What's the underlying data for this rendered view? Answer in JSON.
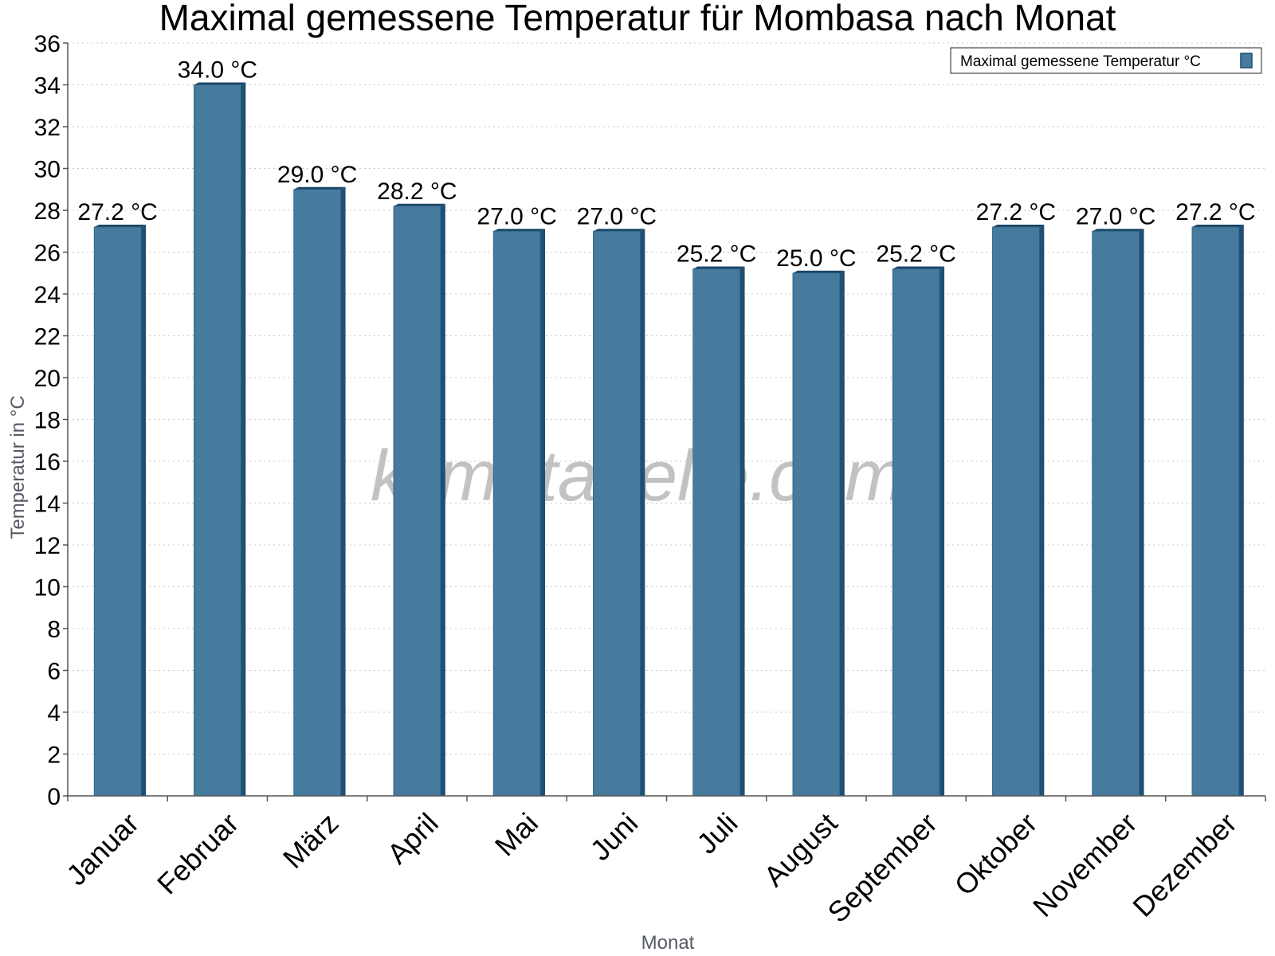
{
  "chart_data": {
    "type": "bar",
    "title": "Maximal gemessene Temperatur für Mombasa nach Monat",
    "xlabel": "Monat",
    "ylabel": "Temperatur in °C",
    "ylim": [
      0,
      36
    ],
    "ytick_step": 2,
    "grid": true,
    "legend_position": "top-right",
    "watermark": "klimatabelle.com",
    "value_suffix": " °C",
    "categories": [
      "Januar",
      "Februar",
      "März",
      "April",
      "Mai",
      "Juni",
      "Juli",
      "August",
      "September",
      "Oktober",
      "November",
      "Dezember"
    ],
    "series": [
      {
        "name": "Maximal gemessene Temperatur °C",
        "color": "#467b9e",
        "values": [
          27.2,
          34.0,
          29.0,
          28.2,
          27.0,
          27.0,
          25.2,
          25.0,
          25.2,
          27.2,
          27.0,
          27.2
        ]
      }
    ]
  }
}
